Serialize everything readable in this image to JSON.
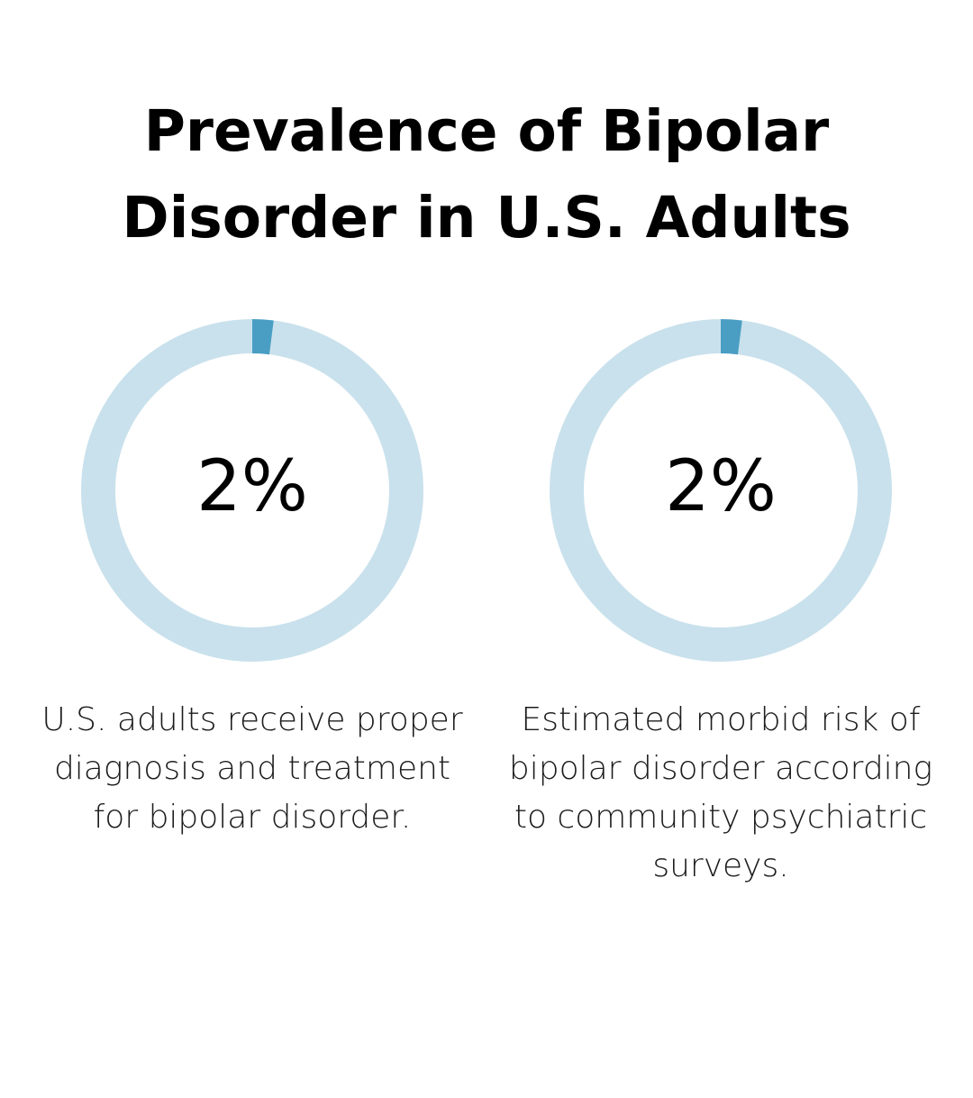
{
  "title": "Prevalence of Bipolar Disorder in U.S. Adults",
  "colors": {
    "track": "#c9e1ec",
    "accent": "#4a9ec4",
    "text": "#000000"
  },
  "chart_data": [
    {
      "type": "pie",
      "value": 2,
      "max": 100,
      "label": "2%",
      "caption": "U.S. adults receive proper diagnosis and treatment for bipolar disorder."
    },
    {
      "type": "pie",
      "value": 2,
      "max": 100,
      "label": "2%",
      "caption": "Estimated morbid risk of bipolar disorder according to community psychiatric surveys."
    }
  ]
}
